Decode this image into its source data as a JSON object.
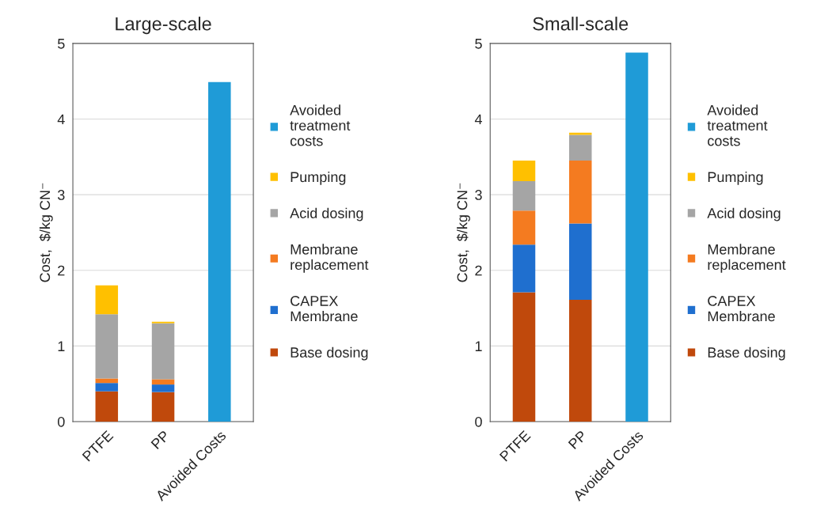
{
  "chart_data": [
    {
      "type": "bar",
      "title": "Large-scale",
      "ylabel": "Cost,  $/kg CN⁻",
      "categories": [
        "PTFE",
        "PP",
        "Avoided Costs"
      ],
      "stacked": true,
      "ylim": [
        0,
        5
      ],
      "yticks": [
        0,
        1,
        2,
        3,
        4,
        5
      ],
      "grid": "y",
      "legend": "right",
      "series": [
        {
          "name": "Base dosing",
          "color": "#c0490c",
          "values": [
            0.4,
            0.39,
            null
          ]
        },
        {
          "name": "CAPEX\nMembrane",
          "color": "#1f6fcf",
          "values": [
            0.11,
            0.1,
            null
          ]
        },
        {
          "name": "Membrane\nreplacement",
          "color": "#f47b20",
          "values": [
            0.06,
            0.07,
            null
          ]
        },
        {
          "name": "Acid dosing",
          "color": "#a5a5a5",
          "values": [
            0.85,
            0.74,
            null
          ]
        },
        {
          "name": "Pumping",
          "color": "#ffc000",
          "values": [
            0.38,
            0.02,
            null
          ]
        },
        {
          "name": "Avoided\ntreatment\ncosts",
          "color": "#1f9bd7",
          "values": [
            null,
            null,
            4.49
          ]
        }
      ]
    },
    {
      "type": "bar",
      "title": "Small-scale",
      "ylabel": "Cost,  $/kg CN⁻",
      "categories": [
        "PTFE",
        "PP",
        "Avoided Costs"
      ],
      "stacked": true,
      "ylim": [
        0,
        5
      ],
      "yticks": [
        0,
        1,
        2,
        3,
        4,
        5
      ],
      "grid": "y",
      "legend": "right",
      "series": [
        {
          "name": "Base dosing",
          "color": "#c0490c",
          "values": [
            1.71,
            1.61,
            null
          ]
        },
        {
          "name": "CAPEX\nMembrane",
          "color": "#1f6fcf",
          "values": [
            0.63,
            1.01,
            null
          ]
        },
        {
          "name": "Membrane\nreplacement",
          "color": "#f47b20",
          "values": [
            0.45,
            0.83,
            null
          ]
        },
        {
          "name": "Acid dosing",
          "color": "#a5a5a5",
          "values": [
            0.39,
            0.34,
            null
          ]
        },
        {
          "name": "Pumping",
          "color": "#ffc000",
          "values": [
            0.27,
            0.03,
            null
          ]
        },
        {
          "name": "Avoided\ntreatment\ncosts",
          "color": "#1f9bd7",
          "values": [
            null,
            null,
            4.88
          ]
        }
      ]
    }
  ]
}
